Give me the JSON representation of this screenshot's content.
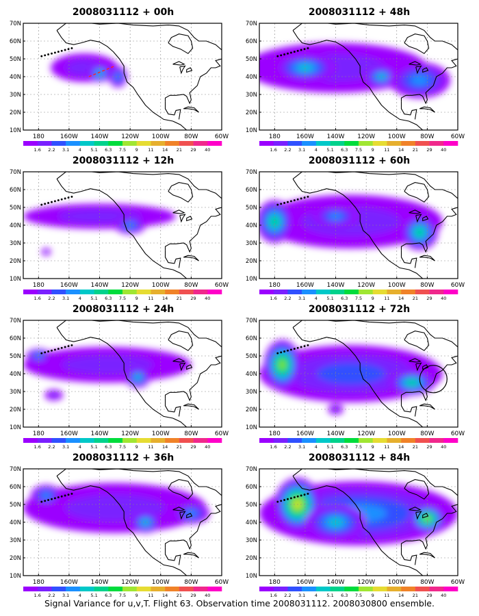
{
  "footer": "Signal Variance for u,v,T. Flight 63. Observation time 2008031112. 2008030800 ensemble.",
  "colorbar": {
    "labels": [
      "1.6",
      "2.2",
      "3.1",
      "4",
      "5.1",
      "6.3",
      "7.5",
      "9",
      "11",
      "14",
      "21",
      "29",
      "40"
    ],
    "colors": [
      "#9b00ff",
      "#7a20ff",
      "#3050ff",
      "#1a90ff",
      "#00c8c8",
      "#00d28c",
      "#00dc3c",
      "#a0e632",
      "#e6dc32",
      "#e6af2d",
      "#f08228",
      "#f05050",
      "#f0288c",
      "#ff00c8"
    ]
  },
  "axes": {
    "x_ticks": [
      "180",
      "160W",
      "140W",
      "120W",
      "100W",
      "80W",
      "60W"
    ],
    "y_ticks": [
      "10N",
      "20N",
      "30N",
      "40N",
      "50N",
      "60N",
      "70N"
    ],
    "xlim": [
      -190,
      -60
    ],
    "ylim": [
      10,
      70
    ],
    "grid": true
  },
  "chart_data": [
    {
      "type": "heatmap",
      "title": "2008031112 + 00h",
      "max_level": 5,
      "blobs": [
        {
          "lon": -150,
          "lat": 45,
          "rlon": 22,
          "rlat": 8,
          "level": 1
        },
        {
          "lon": -140,
          "lat": 42,
          "rlon": 8,
          "rlat": 5,
          "level": 4
        },
        {
          "lon": -128,
          "lat": 40,
          "rlon": 6,
          "rlat": 6,
          "level": 3
        }
      ]
    },
    {
      "type": "heatmap",
      "title": "2008031112 + 48h",
      "max_level": 6,
      "blobs": [
        {
          "lon": -140,
          "lat": 45,
          "rlon": 60,
          "rlat": 14,
          "level": 1
        },
        {
          "lon": -160,
          "lat": 45,
          "rlon": 20,
          "rlat": 8,
          "level": 4
        },
        {
          "lon": -110,
          "lat": 40,
          "rlon": 12,
          "rlat": 6,
          "level": 4
        },
        {
          "lon": -85,
          "lat": 38,
          "rlon": 20,
          "rlat": 10,
          "level": 3
        }
      ]
    },
    {
      "type": "heatmap",
      "title": "2008031112 + 12h",
      "max_level": 4,
      "blobs": [
        {
          "lon": -140,
          "lat": 45,
          "rlon": 50,
          "rlat": 7,
          "level": 1
        },
        {
          "lon": -120,
          "lat": 40,
          "rlon": 10,
          "rlat": 5,
          "level": 3
        },
        {
          "lon": -175,
          "lat": 25,
          "rlon": 3,
          "rlat": 2,
          "level": 1
        }
      ]
    },
    {
      "type": "heatmap",
      "title": "2008031112 + 60h",
      "max_level": 7,
      "blobs": [
        {
          "lon": -130,
          "lat": 42,
          "rlon": 60,
          "rlat": 15,
          "level": 1
        },
        {
          "lon": -180,
          "lat": 42,
          "rlon": 12,
          "rlat": 12,
          "level": 5
        },
        {
          "lon": -85,
          "lat": 36,
          "rlon": 12,
          "rlat": 10,
          "level": 5
        },
        {
          "lon": -140,
          "lat": 45,
          "rlon": 15,
          "rlat": 6,
          "level": 3
        }
      ]
    },
    {
      "type": "heatmap",
      "title": "2008031112 + 24h",
      "max_level": 5,
      "blobs": [
        {
          "lon": -135,
          "lat": 45,
          "rlon": 55,
          "rlat": 10,
          "level": 1
        },
        {
          "lon": -180,
          "lat": 50,
          "rlon": 8,
          "rlat": 4,
          "level": 3
        },
        {
          "lon": -115,
          "lat": 38,
          "rlon": 8,
          "rlat": 6,
          "level": 4
        },
        {
          "lon": -170,
          "lat": 28,
          "rlon": 6,
          "rlat": 3,
          "level": 1
        }
      ]
    },
    {
      "type": "heatmap",
      "title": "2008031112 + 72h",
      "max_level": 9,
      "blobs": [
        {
          "lon": -130,
          "lat": 40,
          "rlon": 60,
          "rlat": 16,
          "level": 2
        },
        {
          "lon": -175,
          "lat": 45,
          "rlon": 12,
          "rlat": 14,
          "level": 7
        },
        {
          "lon": -90,
          "lat": 35,
          "rlon": 15,
          "rlat": 7,
          "level": 5
        },
        {
          "lon": -140,
          "lat": 20,
          "rlon": 5,
          "rlat": 3,
          "level": 1
        }
      ]
    },
    {
      "type": "heatmap",
      "title": "2008031112 + 36h",
      "max_level": 5,
      "blobs": [
        {
          "lon": -130,
          "lat": 48,
          "rlon": 60,
          "rlat": 14,
          "level": 1
        },
        {
          "lon": -175,
          "lat": 55,
          "rlon": 10,
          "rlat": 6,
          "level": 3
        },
        {
          "lon": -110,
          "lat": 40,
          "rlon": 10,
          "rlat": 6,
          "level": 4
        },
        {
          "lon": -80,
          "lat": 45,
          "rlon": 12,
          "rlat": 6,
          "level": 3
        }
      ]
    },
    {
      "type": "heatmap",
      "title": "2008031112 + 84h",
      "max_level": 9,
      "blobs": [
        {
          "lon": -125,
          "lat": 45,
          "rlon": 65,
          "rlat": 18,
          "level": 3
        },
        {
          "lon": -165,
          "lat": 50,
          "rlon": 15,
          "rlat": 15,
          "level": 8
        },
        {
          "lon": -80,
          "lat": 42,
          "rlon": 12,
          "rlat": 8,
          "level": 7
        },
        {
          "lon": -140,
          "lat": 40,
          "rlon": 20,
          "rlat": 10,
          "level": 4
        }
      ]
    }
  ]
}
